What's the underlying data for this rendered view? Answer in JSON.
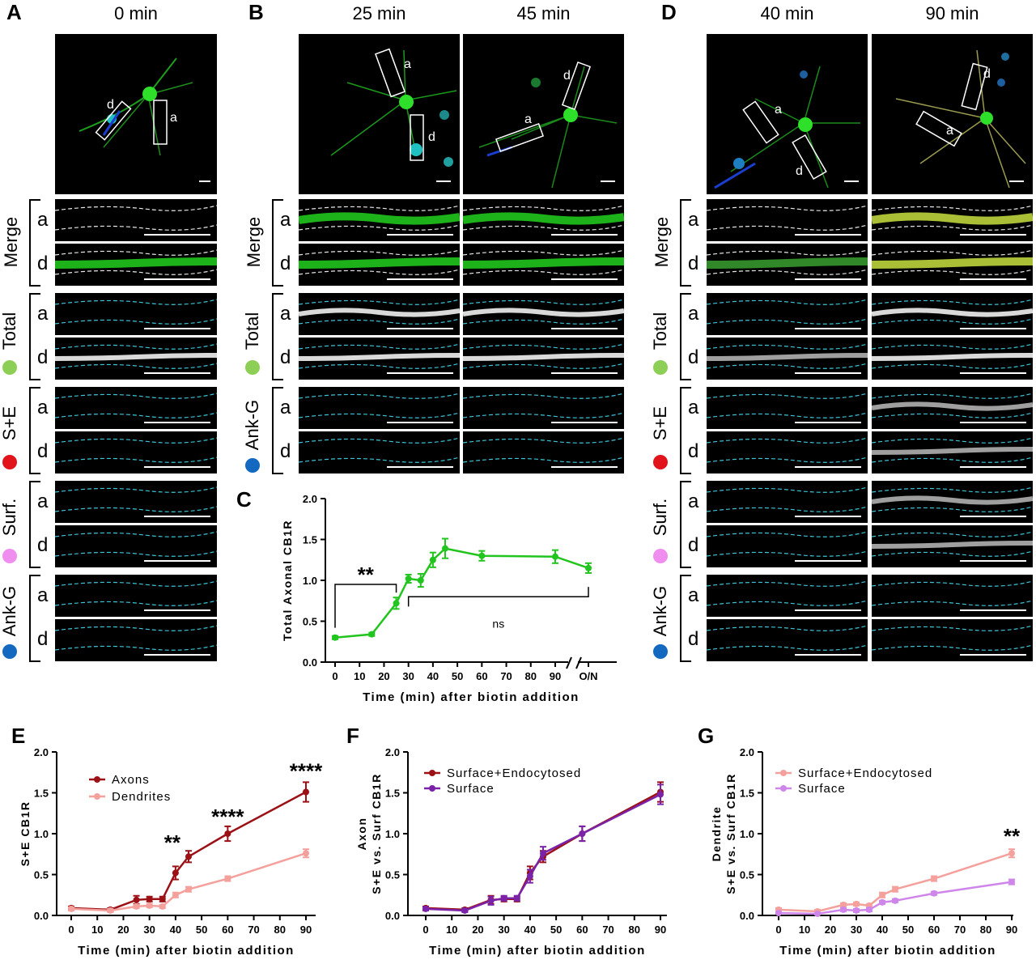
{
  "panels": {
    "A": {
      "letter": "A",
      "times": [
        "0 min"
      ]
    },
    "B": {
      "letter": "B",
      "times": [
        "25 min",
        "45 min"
      ]
    },
    "C": {
      "letter": "C"
    },
    "D": {
      "letter": "D",
      "times": [
        "40 min",
        "90 min"
      ]
    },
    "E": {
      "letter": "E"
    },
    "F": {
      "letter": "F"
    },
    "G": {
      "letter": "G"
    }
  },
  "row_labels": {
    "merge": "Merge",
    "total": "Total",
    "se": "S+E",
    "surf": "Surf.",
    "ankg": "Ank-G"
  },
  "sub_labels": {
    "a": "a",
    "d": "d"
  },
  "colors": {
    "green": "#22c41e",
    "red": "#e0141a",
    "pink": "#f08ef0",
    "blue": "#1369c0",
    "dark_red": "#9b1116",
    "light_red": "#f4a09c",
    "purple": "#7a22a8",
    "violet": "#cf86ea"
  },
  "chart_data": [
    {
      "id": "C",
      "type": "line",
      "ylabel": "Total  Axonal CB1R",
      "xlabel": "Time (min) after biotin addition",
      "ylim": [
        0,
        2.0
      ],
      "yticks": [
        "0.0",
        "0.5",
        "1.0",
        "1.5",
        "2.0"
      ],
      "xticks": [
        "0",
        "10",
        "20",
        "30",
        "40",
        "50",
        "60",
        "70",
        "80",
        "90",
        "O/N"
      ],
      "series": [
        {
          "color": "#22c41e",
          "x": [
            0,
            15,
            25,
            30,
            35,
            40,
            45,
            60,
            90,
            "O/N"
          ],
          "y": [
            0.3,
            0.34,
            0.72,
            1.02,
            1.0,
            1.25,
            1.39,
            1.3,
            1.29,
            1.15
          ],
          "err": [
            0.02,
            0.02,
            0.07,
            0.05,
            0.08,
            0.09,
            0.12,
            0.06,
            0.08,
            0.06
          ]
        }
      ],
      "annotations": [
        {
          "text": "**"
        },
        {
          "text": "ns"
        }
      ]
    },
    {
      "id": "E",
      "type": "line",
      "ylabel": "S+E CB1R",
      "xlabel": "Time (min) after biotin addition",
      "ylim": [
        0,
        2.0
      ],
      "yticks": [
        "0.0",
        "0.5",
        "1.0",
        "1.5",
        "2.0"
      ],
      "xticks": [
        "0",
        "10",
        "20",
        "30",
        "40",
        "50",
        "60",
        "70",
        "80",
        "90"
      ],
      "series": [
        {
          "name": "Axons",
          "color": "#9b1116",
          "x": [
            0,
            15,
            25,
            30,
            35,
            40,
            45,
            60,
            90
          ],
          "y": [
            0.09,
            0.07,
            0.19,
            0.2,
            0.2,
            0.52,
            0.72,
            1.0,
            1.51
          ],
          "err": [
            0.02,
            0.02,
            0.05,
            0.03,
            0.03,
            0.08,
            0.07,
            0.09,
            0.12
          ]
        },
        {
          "name": "Dendrites",
          "color": "#f4a09c",
          "x": [
            0,
            15,
            25,
            30,
            35,
            40,
            45,
            60,
            90
          ],
          "y": [
            0.08,
            0.06,
            0.11,
            0.12,
            0.11,
            0.25,
            0.32,
            0.45,
            0.76
          ],
          "err": [
            0.02,
            0.02,
            0.02,
            0.02,
            0.02,
            0.03,
            0.03,
            0.03,
            0.05
          ]
        }
      ],
      "annotations": [
        {
          "text": "**",
          "x": 40
        },
        {
          "text": "****",
          "x": 60
        },
        {
          "text": "****",
          "x": 90
        }
      ]
    },
    {
      "id": "F",
      "type": "line",
      "ylabel": "S+E vs. Surf CB1R",
      "ylabel2": "Axon",
      "xlabel": "Time (min) after biotin addition",
      "ylim": [
        0,
        2.0
      ],
      "yticks": [
        "0.0",
        "0.5",
        "1.0",
        "1.5",
        "2.0"
      ],
      "xticks": [
        "0",
        "10",
        "20",
        "30",
        "40",
        "50",
        "60",
        "70",
        "80",
        "90"
      ],
      "series": [
        {
          "name": "Surface+Endocytosed",
          "color": "#9b1116",
          "x": [
            0,
            15,
            25,
            30,
            35,
            40,
            45,
            60,
            90
          ],
          "y": [
            0.09,
            0.07,
            0.19,
            0.2,
            0.2,
            0.52,
            0.72,
            1.0,
            1.51
          ],
          "err": [
            0.02,
            0.02,
            0.05,
            0.03,
            0.03,
            0.08,
            0.07,
            0.09,
            0.12
          ]
        },
        {
          "name": "Surface",
          "color": "#7a22a8",
          "x": [
            0,
            15,
            25,
            30,
            35,
            40,
            45,
            60,
            90
          ],
          "y": [
            0.08,
            0.06,
            0.18,
            0.21,
            0.21,
            0.48,
            0.76,
            1.0,
            1.48
          ],
          "err": [
            0.02,
            0.02,
            0.05,
            0.03,
            0.03,
            0.08,
            0.08,
            0.09,
            0.12
          ]
        }
      ]
    },
    {
      "id": "G",
      "type": "line",
      "ylabel": "S+E vs. Surf CB1R",
      "ylabel2": "Dendrite",
      "xlabel": "Time (min) after biotin addition",
      "ylim": [
        0,
        2.0
      ],
      "yticks": [
        "0.0",
        "0.5",
        "1.0",
        "1.5",
        "2.0"
      ],
      "xticks": [
        "0",
        "10",
        "20",
        "30",
        "40",
        "50",
        "60",
        "70",
        "80",
        "90"
      ],
      "series": [
        {
          "name": "Surface+Endocytosed",
          "color": "#f4a09c",
          "x": [
            0,
            15,
            25,
            30,
            35,
            40,
            45,
            60,
            90
          ],
          "y": [
            0.07,
            0.05,
            0.13,
            0.14,
            0.12,
            0.25,
            0.32,
            0.45,
            0.76
          ],
          "err": [
            0.02,
            0.02,
            0.02,
            0.02,
            0.02,
            0.03,
            0.03,
            0.03,
            0.05
          ]
        },
        {
          "name": "Surface",
          "color": "#cf86ea",
          "x": [
            0,
            15,
            25,
            30,
            35,
            40,
            45,
            60,
            90
          ],
          "y": [
            0.03,
            0.02,
            0.07,
            0.06,
            0.07,
            0.16,
            0.18,
            0.27,
            0.41
          ],
          "err": [
            0.01,
            0.01,
            0.02,
            0.02,
            0.02,
            0.02,
            0.02,
            0.02,
            0.03
          ]
        }
      ],
      "annotations": [
        {
          "text": "**",
          "x": 90
        }
      ]
    }
  ]
}
